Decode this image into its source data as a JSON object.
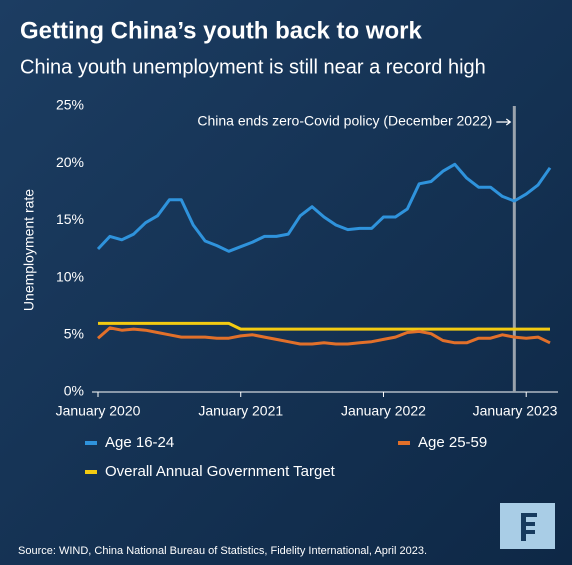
{
  "chart_data": {
    "type": "line",
    "title": "Getting China’s youth back to work",
    "subtitle": "China youth unemployment is still near a record high",
    "y_label": "Unemployment rate",
    "source": "Source: WIND, China National Bureau of Statistics, Fidelity International, April 2023.",
    "annotation": {
      "text": "China ends zero-Covid policy (December 2022)",
      "x_index": 35
    },
    "categories": [
      "January 2020",
      null,
      null,
      null,
      null,
      null,
      null,
      null,
      null,
      null,
      null,
      null,
      "January 2021",
      null,
      null,
      null,
      null,
      null,
      null,
      null,
      null,
      null,
      null,
      null,
      "January 2022",
      null,
      null,
      null,
      null,
      null,
      null,
      null,
      null,
      null,
      null,
      null,
      "January 2023",
      null,
      null
    ],
    "ylim": [
      0,
      25
    ],
    "yticks": [
      {
        "value": 0,
        "label": "0%"
      },
      {
        "value": 5,
        "label": "5%"
      },
      {
        "value": 10,
        "label": "10%"
      },
      {
        "value": 15,
        "label": "15%"
      },
      {
        "value": 20,
        "label": "20%"
      },
      {
        "value": 25,
        "label": "25%"
      }
    ],
    "grid": false,
    "series": [
      {
        "name": "Age 16-24",
        "color": "#2f93dc",
        "values": [
          12.5,
          13.6,
          13.3,
          13.8,
          14.8,
          15.4,
          16.8,
          16.8,
          14.6,
          13.2,
          12.8,
          12.3,
          12.7,
          13.1,
          13.6,
          13.6,
          13.8,
          15.4,
          16.2,
          15.3,
          14.6,
          14.2,
          14.3,
          14.3,
          15.3,
          15.3,
          16.0,
          18.2,
          18.4,
          19.3,
          19.9,
          18.7,
          17.9,
          17.9,
          17.1,
          16.7,
          17.3,
          18.1,
          19.6
        ]
      },
      {
        "name": "Age 25-59",
        "color": "#e2702a",
        "values": [
          4.7,
          5.6,
          5.4,
          5.5,
          5.4,
          5.2,
          5.0,
          4.8,
          4.8,
          4.8,
          4.7,
          4.7,
          4.9,
          5.0,
          4.8,
          4.6,
          4.4,
          4.2,
          4.2,
          4.3,
          4.2,
          4.2,
          4.3,
          4.4,
          4.6,
          4.8,
          5.2,
          5.3,
          5.1,
          4.5,
          4.3,
          4.3,
          4.7,
          4.7,
          5.0,
          4.8,
          4.7,
          4.8,
          4.3
        ]
      },
      {
        "name": "Overall Annual Government Target",
        "color": "#f3cb12",
        "values": [
          6,
          6,
          6,
          6,
          6,
          6,
          6,
          6,
          6,
          6,
          6,
          6,
          5.5,
          5.5,
          5.5,
          5.5,
          5.5,
          5.5,
          5.5,
          5.5,
          5.5,
          5.5,
          5.5,
          5.5,
          5.5,
          5.5,
          5.5,
          5.5,
          5.5,
          5.5,
          5.5,
          5.5,
          5.5,
          5.5,
          5.5,
          5.5,
          5.5,
          5.5,
          5.5
        ]
      }
    ]
  }
}
